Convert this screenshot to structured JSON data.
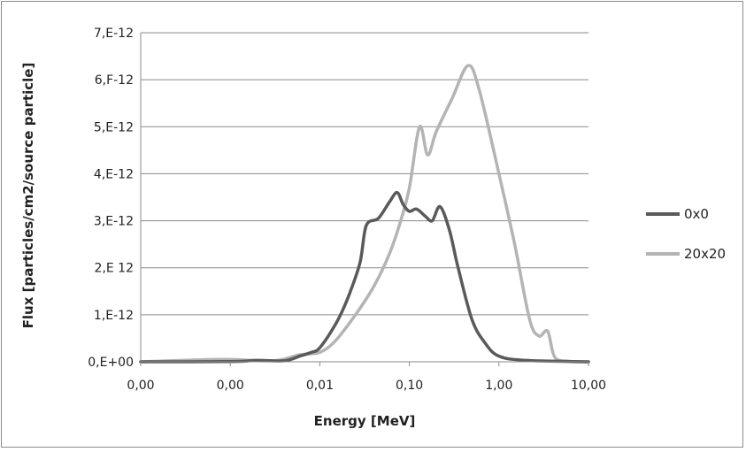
{
  "chart_data": {
    "type": "line",
    "title": "",
    "xlabel": "Energy [MeV]",
    "ylabel": "Flux [particles/cm2/source particle]",
    "x_scale": "log",
    "xlim": [
      0.0001,
      10
    ],
    "ylim": [
      0,
      7e-12
    ],
    "x_tick_values": [
      0.0001,
      0.001,
      0.01,
      0.1,
      1,
      10
    ],
    "x_tick_labels": [
      "0,00",
      "0,00",
      "0,01",
      "0,10",
      "1,00",
      "10,00"
    ],
    "y_tick_values": [
      0,
      1e-12,
      2e-12,
      3e-12,
      4e-12,
      5e-12,
      6e-12,
      7e-12
    ],
    "y_tick_labels": [
      "0,E+00",
      "1,E-12",
      "2,E 12",
      "3,E-12",
      "4,E-12",
      "5,E-12",
      "6,F-12",
      "7,E-12"
    ],
    "grid": "horizontal",
    "legend_position": "right",
    "series": [
      {
        "name": "0x0",
        "color": "#5a5a5a",
        "points": [
          [
            0.0001,
            0
          ],
          [
            0.001,
            5e-15
          ],
          [
            0.002,
            3e-14
          ],
          [
            0.004,
            2e-14
          ],
          [
            0.006,
            1.2e-13
          ],
          [
            0.008,
            2e-13
          ],
          [
            0.01,
            3e-13
          ],
          [
            0.015,
            8e-13
          ],
          [
            0.02,
            1.3e-12
          ],
          [
            0.028,
            2.1e-12
          ],
          [
            0.033,
            2.9e-12
          ],
          [
            0.045,
            3.05e-12
          ],
          [
            0.06,
            3.4e-12
          ],
          [
            0.073,
            3.6e-12
          ],
          [
            0.085,
            3.35e-12
          ],
          [
            0.1,
            3.2e-12
          ],
          [
            0.12,
            3.25e-12
          ],
          [
            0.15,
            3.1e-12
          ],
          [
            0.18,
            3e-12
          ],
          [
            0.22,
            3.3e-12
          ],
          [
            0.28,
            2.8e-12
          ],
          [
            0.35,
            2e-12
          ],
          [
            0.5,
            9e-13
          ],
          [
            0.7,
            4e-13
          ],
          [
            1.0,
            1.2e-13
          ],
          [
            2.0,
            3e-14
          ],
          [
            10,
            0
          ]
        ]
      },
      {
        "name": "20x20",
        "color": "#b4b4b4",
        "points": [
          [
            0.0001,
            0
          ],
          [
            0.0008,
            5e-14
          ],
          [
            0.003,
            2e-14
          ],
          [
            0.006,
            1.5e-13
          ],
          [
            0.01,
            2e-13
          ],
          [
            0.015,
            4.5e-13
          ],
          [
            0.025,
            1e-12
          ],
          [
            0.04,
            1.6e-12
          ],
          [
            0.06,
            2.3e-12
          ],
          [
            0.08,
            3e-12
          ],
          [
            0.1,
            3.7e-12
          ],
          [
            0.13,
            5e-12
          ],
          [
            0.16,
            4.4e-12
          ],
          [
            0.2,
            4.9e-12
          ],
          [
            0.3,
            5.6e-12
          ],
          [
            0.45,
            6.3e-12
          ],
          [
            0.6,
            5.8e-12
          ],
          [
            1.0,
            4e-12
          ],
          [
            1.5,
            2.5e-12
          ],
          [
            2.2,
            9e-13
          ],
          [
            2.8,
            5.5e-13
          ],
          [
            3.5,
            6.5e-13
          ],
          [
            4.2,
            1e-13
          ],
          [
            6,
            1e-14
          ],
          [
            10,
            0
          ]
        ]
      }
    ]
  }
}
